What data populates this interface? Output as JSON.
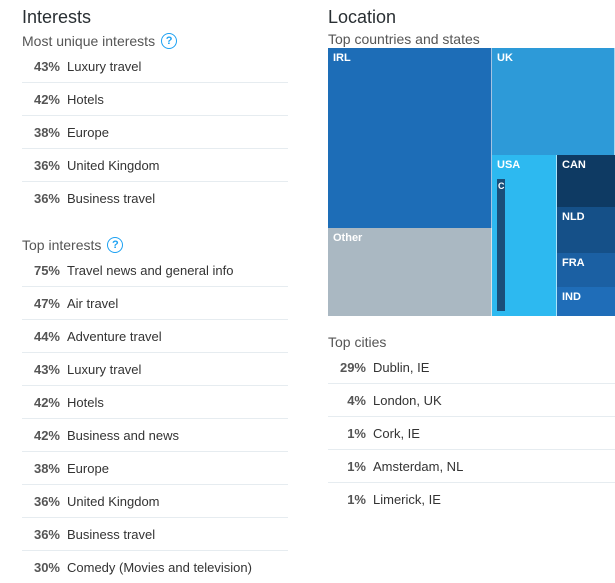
{
  "interests": {
    "title": "Interests",
    "unique_label": "Most unique interests",
    "unique": [
      {
        "pct": "43%",
        "label": "Luxury travel"
      },
      {
        "pct": "42%",
        "label": "Hotels"
      },
      {
        "pct": "38%",
        "label": "Europe"
      },
      {
        "pct": "36%",
        "label": "United Kingdom"
      },
      {
        "pct": "36%",
        "label": "Business travel"
      }
    ],
    "top_label": "Top interests",
    "top": [
      {
        "pct": "75%",
        "label": "Travel news and general info"
      },
      {
        "pct": "47%",
        "label": "Air travel"
      },
      {
        "pct": "44%",
        "label": "Adventure travel"
      },
      {
        "pct": "43%",
        "label": "Luxury travel"
      },
      {
        "pct": "42%",
        "label": "Hotels"
      },
      {
        "pct": "42%",
        "label": "Business and news"
      },
      {
        "pct": "38%",
        "label": "Europe"
      },
      {
        "pct": "36%",
        "label": "United Kingdom"
      },
      {
        "pct": "36%",
        "label": "Business travel"
      },
      {
        "pct": "30%",
        "label": "Comedy (Movies and television)"
      }
    ]
  },
  "location": {
    "title": "Location",
    "countries_label": "Top countries and states",
    "treemap": [
      {
        "label": "IRL",
        "color": "#1d6db7"
      },
      {
        "label": "Other",
        "color": "#aab8c2"
      },
      {
        "label": "UK",
        "color": "#2d9ad8"
      },
      {
        "label": "USA",
        "color": "#2db9f0"
      },
      {
        "label": "C",
        "color": "#1a4f7a"
      },
      {
        "label": "CAN",
        "color": "#0e3a63"
      },
      {
        "label": "NLD",
        "color": "#155088"
      },
      {
        "label": "FRA",
        "color": "#1b60a3"
      },
      {
        "label": "IND",
        "color": "#1f6db8"
      }
    ],
    "cities_label": "Top cities",
    "cities": [
      {
        "pct": "29%",
        "label": "Dublin, IE"
      },
      {
        "pct": "4%",
        "label": "London, UK"
      },
      {
        "pct": "1%",
        "label": "Cork, IE"
      },
      {
        "pct": "1%",
        "label": "Amsterdam, NL"
      },
      {
        "pct": "1%",
        "label": "Limerick, IE"
      }
    ]
  },
  "icons": {
    "help": "help-circle-icon"
  }
}
